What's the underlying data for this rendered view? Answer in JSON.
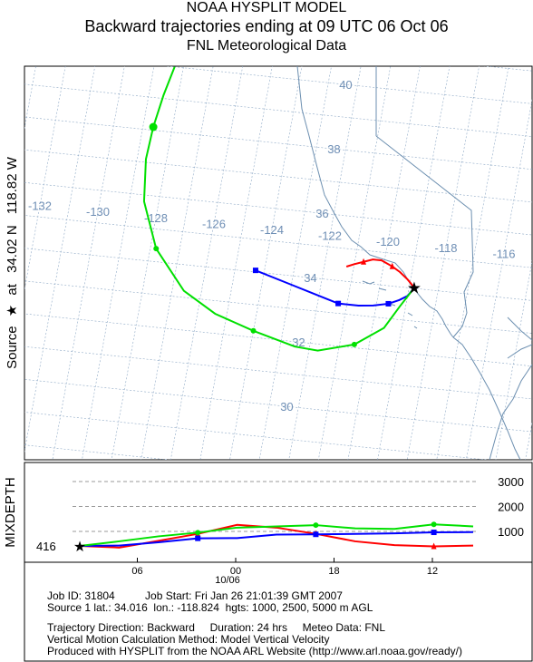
{
  "header": {
    "line1": "NOAA HYSPLIT MODEL",
    "line2": "Backward trajectories ending at 09 UTC 06 Oct 06",
    "line3": "FNL  Meteorological Data"
  },
  "side_label": {
    "source": "Source",
    "at": "at",
    "lat": "34.02 N",
    "lon": "118.82 W"
  },
  "mixdepth_label": "MIXDEPTH",
  "colors": {
    "red": "#ff0000",
    "blue": "#0000ff",
    "green": "#00e000",
    "grid": "#8ea9c6",
    "coast": "#6c8fb0",
    "label": "#6f8fb5"
  },
  "chart_data": [
    {
      "type": "line",
      "plot": "map",
      "lat_labels": [
        "40",
        "38",
        "36",
        "34",
        "32",
        "30"
      ],
      "lon_labels": [
        "-132",
        "-130",
        "-128",
        "-126",
        "-124",
        "-122",
        "-120",
        "-118",
        "-116"
      ],
      "source": {
        "lat": 34.016,
        "lon": -118.824
      },
      "series": [
        {
          "color": "red",
          "marker": "triangle",
          "points": [
            [
              34.02,
              -118.82
            ],
            [
              34.25,
              -119.1
            ],
            [
              34.45,
              -119.4
            ],
            [
              34.6,
              -119.7
            ],
            [
              34.75,
              -120.1
            ],
            [
              34.75,
              -120.4
            ],
            [
              34.65,
              -120.7
            ],
            [
              34.55,
              -121.0
            ],
            [
              34.45,
              -121.25
            ]
          ]
        },
        {
          "color": "blue",
          "marker": "square",
          "points": [
            [
              34.02,
              -118.82
            ],
            [
              33.75,
              -119.0
            ],
            [
              33.6,
              -119.25
            ],
            [
              33.45,
              -119.6
            ],
            [
              33.35,
              -120.1
            ],
            [
              33.3,
              -120.6
            ],
            [
              33.3,
              -121.3
            ],
            [
              33.5,
              -122.1
            ],
            [
              33.75,
              -123.1
            ],
            [
              34.05,
              -124.3
            ]
          ]
        },
        {
          "color": "green",
          "marker": "circle",
          "points": [
            [
              34.02,
              -118.82
            ],
            [
              33.4,
              -119.2
            ],
            [
              32.7,
              -119.6
            ],
            [
              32.1,
              -120.5
            ],
            [
              31.8,
              -121.7
            ],
            [
              31.85,
              -122.5
            ],
            [
              32.2,
              -124.0
            ],
            [
              32.6,
              -125.4
            ],
            [
              33.2,
              -126.6
            ],
            [
              34.4,
              -127.8
            ],
            [
              35.8,
              -128.5
            ],
            [
              37.1,
              -128.7
            ],
            [
              38.1,
              -128.65
            ],
            [
              39.1,
              -128.5
            ],
            [
              40.0,
              -128.3
            ]
          ]
        }
      ]
    },
    {
      "type": "line",
      "plot": "mixdepth",
      "y_tick_labels": [
        "3000",
        "2000",
        "1000"
      ],
      "x_tick_labels": [
        "06",
        "00",
        "18",
        "12"
      ],
      "x_sublabel": "10/06",
      "start_value_label": "416",
      "series": [
        {
          "color": "red",
          "values": [
            416,
            350,
            620,
            900,
            1260,
            1150,
            900,
            600,
            450,
            400,
            430
          ]
        },
        {
          "color": "blue",
          "values": [
            416,
            430,
            560,
            720,
            730,
            870,
            880,
            900,
            920,
            960,
            970
          ]
        },
        {
          "color": "green",
          "values": [
            416,
            600,
            800,
            950,
            1150,
            1200,
            1250,
            1120,
            1100,
            1280,
            1200
          ]
        }
      ]
    }
  ],
  "footer": {
    "line1": "Job ID: 31804          Job Start: Fri Jan 26 21:01:39 GMT 2007",
    "line2": "Source 1 lat.: 34.016  lon.: -118.824  hgts: 1000, 2500, 5000 m AGL",
    "line3": "Trajectory Direction: Backward     Duration: 24 hrs     Meteo Data: FNL",
    "line4": "Vertical Motion Calculation Method: Model Vertical Velocity",
    "line5": "Produced with HYSPLIT from the NOAA ARL Website (http://www.arl.noaa.gov/ready/)"
  }
}
